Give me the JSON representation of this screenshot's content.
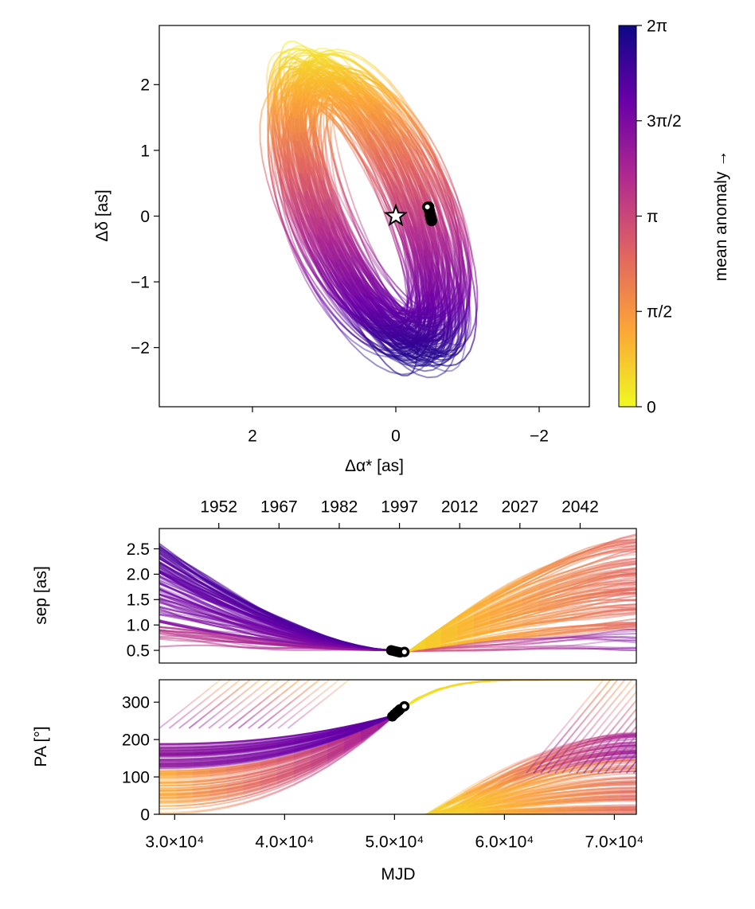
{
  "chart_data": [
    {
      "type": "line",
      "panel": "sky-orbit",
      "xlabel": "Δα* [as]",
      "ylabel": "Δδ [as]",
      "xlim": [
        3.3,
        -2.7
      ],
      "ylim": [
        -2.9,
        2.9
      ],
      "xticks": [
        2,
        0,
        -2
      ],
      "xtick_labels": [
        "2",
        "0",
        "−2"
      ],
      "yticks": [
        2,
        1,
        0,
        -1,
        -2
      ],
      "ytick_labels": [
        "2",
        "1",
        "0",
        "−1",
        "−2"
      ],
      "grid": false,
      "star_marker": {
        "x": 0,
        "y": 0,
        "symbol": "star"
      },
      "observations": [
        {
          "x": -0.46,
          "y": 0.14
        },
        {
          "x": -0.47,
          "y": 0.08
        },
        {
          "x": -0.48,
          "y": 0.02
        },
        {
          "x": -0.49,
          "y": -0.03
        },
        {
          "x": -0.5,
          "y": -0.07
        }
      ],
      "current_position": {
        "x": -0.44,
        "y": 0.14
      },
      "orbit_ellipse_family": {
        "count": 160,
        "center_x_range": [
          0.05,
          0.7
        ],
        "center_y_range": [
          -0.1,
          0.35
        ],
        "semi_major_range": [
          1.8,
          2.5
        ],
        "semi_minor_range": [
          0.45,
          0.95
        ],
        "tilt_deg_range": [
          -26,
          -16
        ]
      }
    },
    {
      "type": "colorbar",
      "label": "mean anomaly →",
      "range": [
        0,
        6.2832
      ],
      "ticks": [
        0,
        1.5708,
        3.1416,
        4.7124,
        6.2832
      ],
      "tick_labels": [
        "0",
        "π/2",
        "π",
        "3π/2",
        "2π"
      ],
      "colormap": "plasma (reversed)",
      "colors": [
        "#f0f921",
        "#fca636",
        "#e16462",
        "#b12a90",
        "#6a00a8",
        "#0d0887"
      ]
    },
    {
      "type": "line",
      "panel": "separation-vs-time",
      "ylabel": "sep [as]",
      "xlim": [
        28600,
        72000
      ],
      "ylim": [
        0.25,
        2.9
      ],
      "yticks": [
        0.5,
        1.0,
        1.5,
        2.0,
        2.5
      ],
      "ytick_labels": [
        "0.5",
        "1.0",
        "1.5",
        "2.0",
        "2.5"
      ],
      "top_axis_ticks": [
        1952,
        1967,
        1982,
        1997,
        2012,
        2027,
        2042
      ],
      "top_axis_tick_labels": [
        "1952",
        "1967",
        "1982",
        "1997",
        "2012",
        "2027",
        "2042"
      ],
      "observations": [
        {
          "x": 49700,
          "y": 0.5
        },
        {
          "x": 49900,
          "y": 0.49
        },
        {
          "x": 50100,
          "y": 0.48
        },
        {
          "x": 50300,
          "y": 0.47
        },
        {
          "x": 50500,
          "y": 0.46
        }
      ],
      "current_position": {
        "x": 50900,
        "y": 0.47
      },
      "left_branch": {
        "x_end": 49700,
        "y_end": 0.5,
        "y_start_range": [
          0.55,
          2.6
        ]
      },
      "right_branch": {
        "x_start": 51300,
        "y_start": 0.48,
        "y_end_range": [
          0.45,
          2.75
        ]
      }
    },
    {
      "type": "line",
      "panel": "position-angle-vs-time",
      "xlabel": "MJD",
      "ylabel": "PA [°]",
      "xlim": [
        28600,
        72000
      ],
      "ylim": [
        0,
        360
      ],
      "yticks": [
        0,
        100,
        200,
        300
      ],
      "ytick_labels": [
        "0",
        "100",
        "200",
        "300"
      ],
      "xticks": [
        30000,
        40000,
        50000,
        60000,
        70000
      ],
      "xtick_labels": [
        "3.0×10⁴",
        "4.0×10⁴",
        "5.0×10⁴",
        "6.0×10⁴",
        "7.0×10⁴"
      ],
      "observations": [
        {
          "x": 49800,
          "y": 262
        },
        {
          "x": 50000,
          "y": 268
        },
        {
          "x": 50200,
          "y": 273
        },
        {
          "x": 50400,
          "y": 278
        },
        {
          "x": 50500,
          "y": 281
        }
      ],
      "current_position": {
        "x": 50900,
        "y": 289
      },
      "convergence_point": {
        "x": 50000,
        "y": 265
      },
      "left_branch": {
        "y_start_range": [
          0,
          190
        ]
      },
      "right_branch": {
        "x_start_range": [
          52800,
          56500
        ],
        "y_end_range": [
          0,
          220
        ],
        "wrap_to_360": true
      }
    }
  ]
}
